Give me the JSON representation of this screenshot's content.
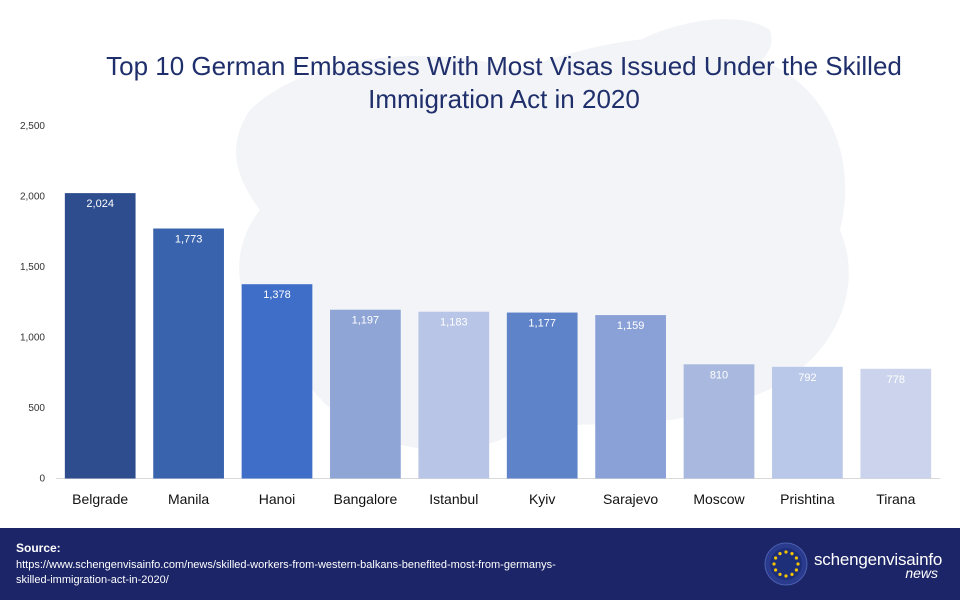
{
  "chart_data": {
    "type": "bar",
    "title": "Top 10 German Embassies With Most Visas Issued Under the Skilled Immigration Act in 2020",
    "categories": [
      "Belgrade",
      "Manila",
      "Hanoi",
      "Bangalore",
      "Istanbul",
      "Kyiv",
      "Sarajevo",
      "Moscow",
      "Prishtina",
      "Tirana"
    ],
    "values": [
      2024,
      1773,
      1378,
      1197,
      1183,
      1177,
      1159,
      810,
      792,
      778
    ],
    "value_labels": [
      "2,024",
      "1,773",
      "1,378",
      "1,197",
      "1,183",
      "1,177",
      "1,159",
      "810",
      "792",
      "778"
    ],
    "bar_colors": [
      "#2d4d8e",
      "#3a63ad",
      "#3f6ec8",
      "#8fa5d6",
      "#b8c5e6",
      "#5f83c9",
      "#8aa1d8",
      "#a8b8de",
      "#b9c7e8",
      "#cbd4ec"
    ],
    "ylim": [
      0,
      2500
    ],
    "yticks": [
      0,
      500,
      1000,
      1500,
      2000,
      2500
    ],
    "ytick_labels": [
      "0",
      "500",
      "1,000",
      "1,500",
      "2,000",
      "2,500"
    ],
    "xlabel": "",
    "ylabel": "",
    "grid": false,
    "legend": "none"
  },
  "footer": {
    "source_heading": "Source:",
    "source_url": "https://www.schengenvisainfo.com/news/skilled-workers-from-western-balkans-benefited-most-from-germanys-skilled-immigration-act-in-2020/",
    "brand_name": "schengenvisainfo",
    "brand_sub": "news",
    "background": "#1c2567"
  },
  "icons": {
    "brand_logo": "eu-stars-circle-icon",
    "background": "europe-map-watermark"
  }
}
